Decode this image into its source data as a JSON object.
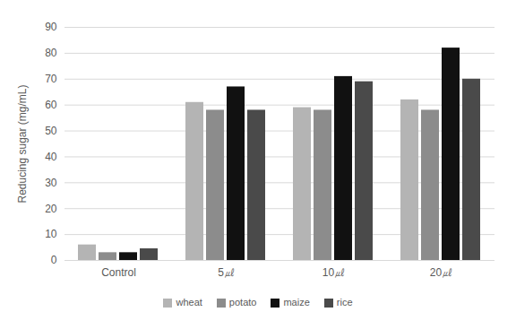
{
  "chart_data": {
    "type": "bar",
    "y_label": "Reducing sugar (mg/mL)",
    "categories": [
      "Control",
      "5㎕",
      "10㎕",
      "20㎕"
    ],
    "series": [
      {
        "name": "wheat",
        "color": "#b4b4b4",
        "values": [
          6,
          61,
          59,
          62
        ]
      },
      {
        "name": "potato",
        "color": "#8c8c8c",
        "values": [
          3,
          58,
          58,
          58
        ]
      },
      {
        "name": "maize",
        "color": "#111111",
        "values": [
          3,
          67,
          71,
          82
        ]
      },
      {
        "name": "rice",
        "color": "#4a4a4a",
        "values": [
          4.5,
          58,
          69,
          70
        ]
      }
    ],
    "ylim": [
      0,
      90
    ],
    "yticks": [
      0,
      10,
      20,
      30,
      40,
      50,
      60,
      70,
      80,
      90
    ],
    "grid": true,
    "legend": "bottom"
  }
}
